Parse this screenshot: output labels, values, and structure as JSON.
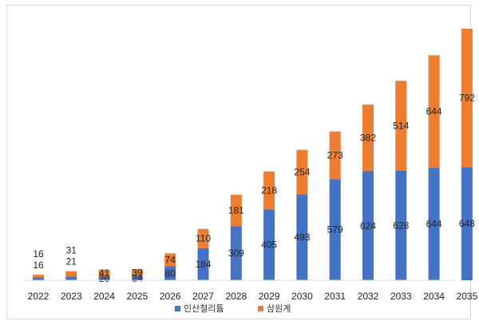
{
  "chart_data": {
    "type": "bar",
    "stacked": true,
    "categories": [
      "2022",
      "2023",
      "2024",
      "2025",
      "2026",
      "2027",
      "2028",
      "2029",
      "2030",
      "2031",
      "2032",
      "2033",
      "2034",
      "2035"
    ],
    "series": [
      {
        "name": "인산철리튬",
        "color": "#4472C4",
        "values": [
          16,
          21,
          20,
          24,
          80,
          184,
          309,
          405,
          493,
          579,
          624,
          628,
          644,
          648
        ]
      },
      {
        "name": "삼원계",
        "color": "#ED7D31",
        "values": [
          16,
          31,
          41,
          39,
          74,
          110,
          181,
          218,
          254,
          273,
          382,
          514,
          644,
          792
        ]
      }
    ],
    "ylim": [
      0,
      1440
    ],
    "grid": false,
    "legend": "bottom",
    "title": "",
    "xlabel": "",
    "ylabel": ""
  }
}
